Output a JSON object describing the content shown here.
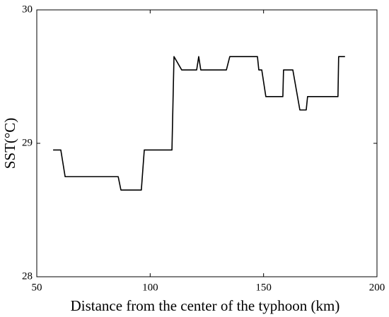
{
  "chart_data": {
    "type": "line",
    "x_label": "Distance from the center of the typhoon (km)",
    "y_label": "SST(°C)",
    "x": [
      57.2,
      60.6,
      62.5,
      85.9,
      87.1,
      96.1,
      97.4,
      109.6,
      110.5,
      113.9,
      120.5,
      121.4,
      122.3,
      133.6,
      135.1,
      147.3,
      147.9,
      149.2,
      151.0,
      158.5,
      158.8,
      162.9,
      166.0,
      168.8,
      169.4,
      182.8,
      183.1,
      185.9
    ],
    "series": [
      {
        "color": "#000000",
        "values": [
          28.95,
          28.95,
          28.75,
          28.75,
          28.65,
          28.65,
          28.95,
          28.95,
          29.65,
          29.55,
          29.55,
          29.65,
          29.55,
          29.55,
          29.65,
          29.65,
          29.55,
          29.55,
          29.35,
          29.35,
          29.55,
          29.55,
          29.25,
          29.25,
          29.35,
          29.35,
          29.65,
          29.65
        ]
      }
    ],
    "xlim": [
      50,
      200
    ],
    "xticks": [
      50,
      100,
      150,
      200
    ],
    "ylim": [
      28,
      30
    ],
    "yticks": [
      28,
      29,
      30
    ],
    "grid": false
  }
}
